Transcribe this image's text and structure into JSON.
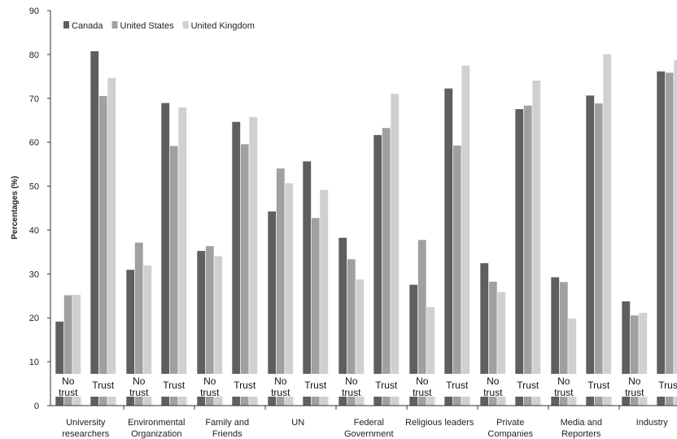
{
  "chart_data": {
    "type": "bar",
    "ylabel": "Percentages (%)",
    "ylim": [
      0,
      90
    ],
    "yticks": [
      0,
      10,
      20,
      30,
      40,
      50,
      60,
      70,
      80,
      90
    ],
    "grid": false,
    "legend_position": "top-left",
    "bar_labels": [
      "No trust",
      "Trust"
    ],
    "categories": [
      {
        "lines": [
          "University",
          "researchers"
        ]
      },
      {
        "lines": [
          "Environmental",
          "Organization"
        ]
      },
      {
        "lines": [
          "Family and",
          "Friends"
        ]
      },
      {
        "lines": [
          "UN"
        ]
      },
      {
        "lines": [
          "Federal",
          "Government"
        ]
      },
      {
        "lines": [
          "Religious leaders"
        ]
      },
      {
        "lines": [
          "Private",
          "Companies"
        ]
      },
      {
        "lines": [
          "Media and",
          "Reporters"
        ]
      },
      {
        "lines": [
          "Industry"
        ]
      }
    ],
    "series": [
      {
        "name": "Canada",
        "color": "#5f5f5f",
        "no_trust": [
          19.2,
          31.0,
          35.3,
          44.3,
          38.3,
          27.6,
          32.5,
          29.3,
          23.8
        ],
        "trust": [
          80.8,
          69.0,
          64.7,
          55.7,
          61.7,
          72.3,
          67.6,
          70.7,
          76.2
        ]
      },
      {
        "name": "United States",
        "color": "#a0a0a0",
        "no_trust": [
          25.2,
          37.2,
          36.4,
          54.1,
          33.4,
          37.8,
          28.3,
          28.2,
          20.6
        ],
        "trust": [
          70.6,
          59.2,
          59.6,
          42.8,
          63.3,
          59.3,
          68.4,
          68.9,
          75.9
        ]
      },
      {
        "name": "United Kingdom",
        "color": "#d0d0d0",
        "no_trust": [
          25.3,
          32.0,
          34.1,
          50.7,
          28.8,
          22.5,
          25.9,
          19.9,
          21.2
        ],
        "trust": [
          74.7,
          68.0,
          65.8,
          49.2,
          71.1,
          77.5,
          74.1,
          80.1,
          78.8
        ]
      }
    ]
  }
}
